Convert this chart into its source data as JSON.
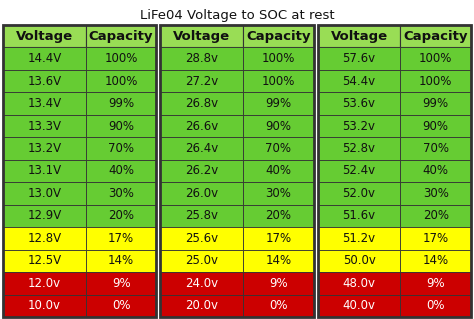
{
  "title": "LiFe04 Voltage to SOC at rest",
  "tables": [
    {
      "headers": [
        "Voltage",
        "Capacity"
      ],
      "rows": [
        [
          "14.4V",
          "100%",
          "green"
        ],
        [
          "13.6V",
          "100%",
          "green"
        ],
        [
          "13.4V",
          "99%",
          "green"
        ],
        [
          "13.3V",
          "90%",
          "green"
        ],
        [
          "13.2V",
          "70%",
          "green"
        ],
        [
          "13.1V",
          "40%",
          "green"
        ],
        [
          "13.0V",
          "30%",
          "green"
        ],
        [
          "12.9V",
          "20%",
          "green"
        ],
        [
          "12.8V",
          "17%",
          "yellow"
        ],
        [
          "12.5V",
          "14%",
          "yellow"
        ],
        [
          "12.0v",
          "9%",
          "red"
        ],
        [
          "10.0v",
          "0%",
          "red"
        ]
      ]
    },
    {
      "headers": [
        "Voltage",
        "Capacity"
      ],
      "rows": [
        [
          "28.8v",
          "100%",
          "green"
        ],
        [
          "27.2v",
          "100%",
          "green"
        ],
        [
          "26.8v",
          "99%",
          "green"
        ],
        [
          "26.6v",
          "90%",
          "green"
        ],
        [
          "26.4v",
          "70%",
          "green"
        ],
        [
          "26.2v",
          "40%",
          "green"
        ],
        [
          "26.0v",
          "30%",
          "green"
        ],
        [
          "25.8v",
          "20%",
          "green"
        ],
        [
          "25.6v",
          "17%",
          "yellow"
        ],
        [
          "25.0v",
          "14%",
          "yellow"
        ],
        [
          "24.0v",
          "9%",
          "red"
        ],
        [
          "20.0v",
          "0%",
          "red"
        ]
      ]
    },
    {
      "headers": [
        "Voltage",
        "Capacity"
      ],
      "rows": [
        [
          "57.6v",
          "100%",
          "green"
        ],
        [
          "54.4v",
          "100%",
          "green"
        ],
        [
          "53.6v",
          "99%",
          "green"
        ],
        [
          "53.2v",
          "90%",
          "green"
        ],
        [
          "52.8v",
          "70%",
          "green"
        ],
        [
          "52.4v",
          "40%",
          "green"
        ],
        [
          "52.0v",
          "30%",
          "green"
        ],
        [
          "51.6v",
          "20%",
          "green"
        ],
        [
          "51.2v",
          "17%",
          "yellow"
        ],
        [
          "50.0v",
          "14%",
          "yellow"
        ],
        [
          "48.0v",
          "9%",
          "red"
        ],
        [
          "40.0v",
          "0%",
          "red"
        ]
      ]
    }
  ],
  "colors": {
    "green": "#66cc33",
    "yellow": "#ffff00",
    "red": "#cc0000",
    "header_bg": "#99dd55",
    "border": "#333333",
    "text_dark": "#111111",
    "text_red_row": "#ffffff",
    "background": "#ffffff"
  },
  "title_fontsize": 9.5,
  "cell_fontsize": 8.5,
  "header_fontsize": 9.5
}
